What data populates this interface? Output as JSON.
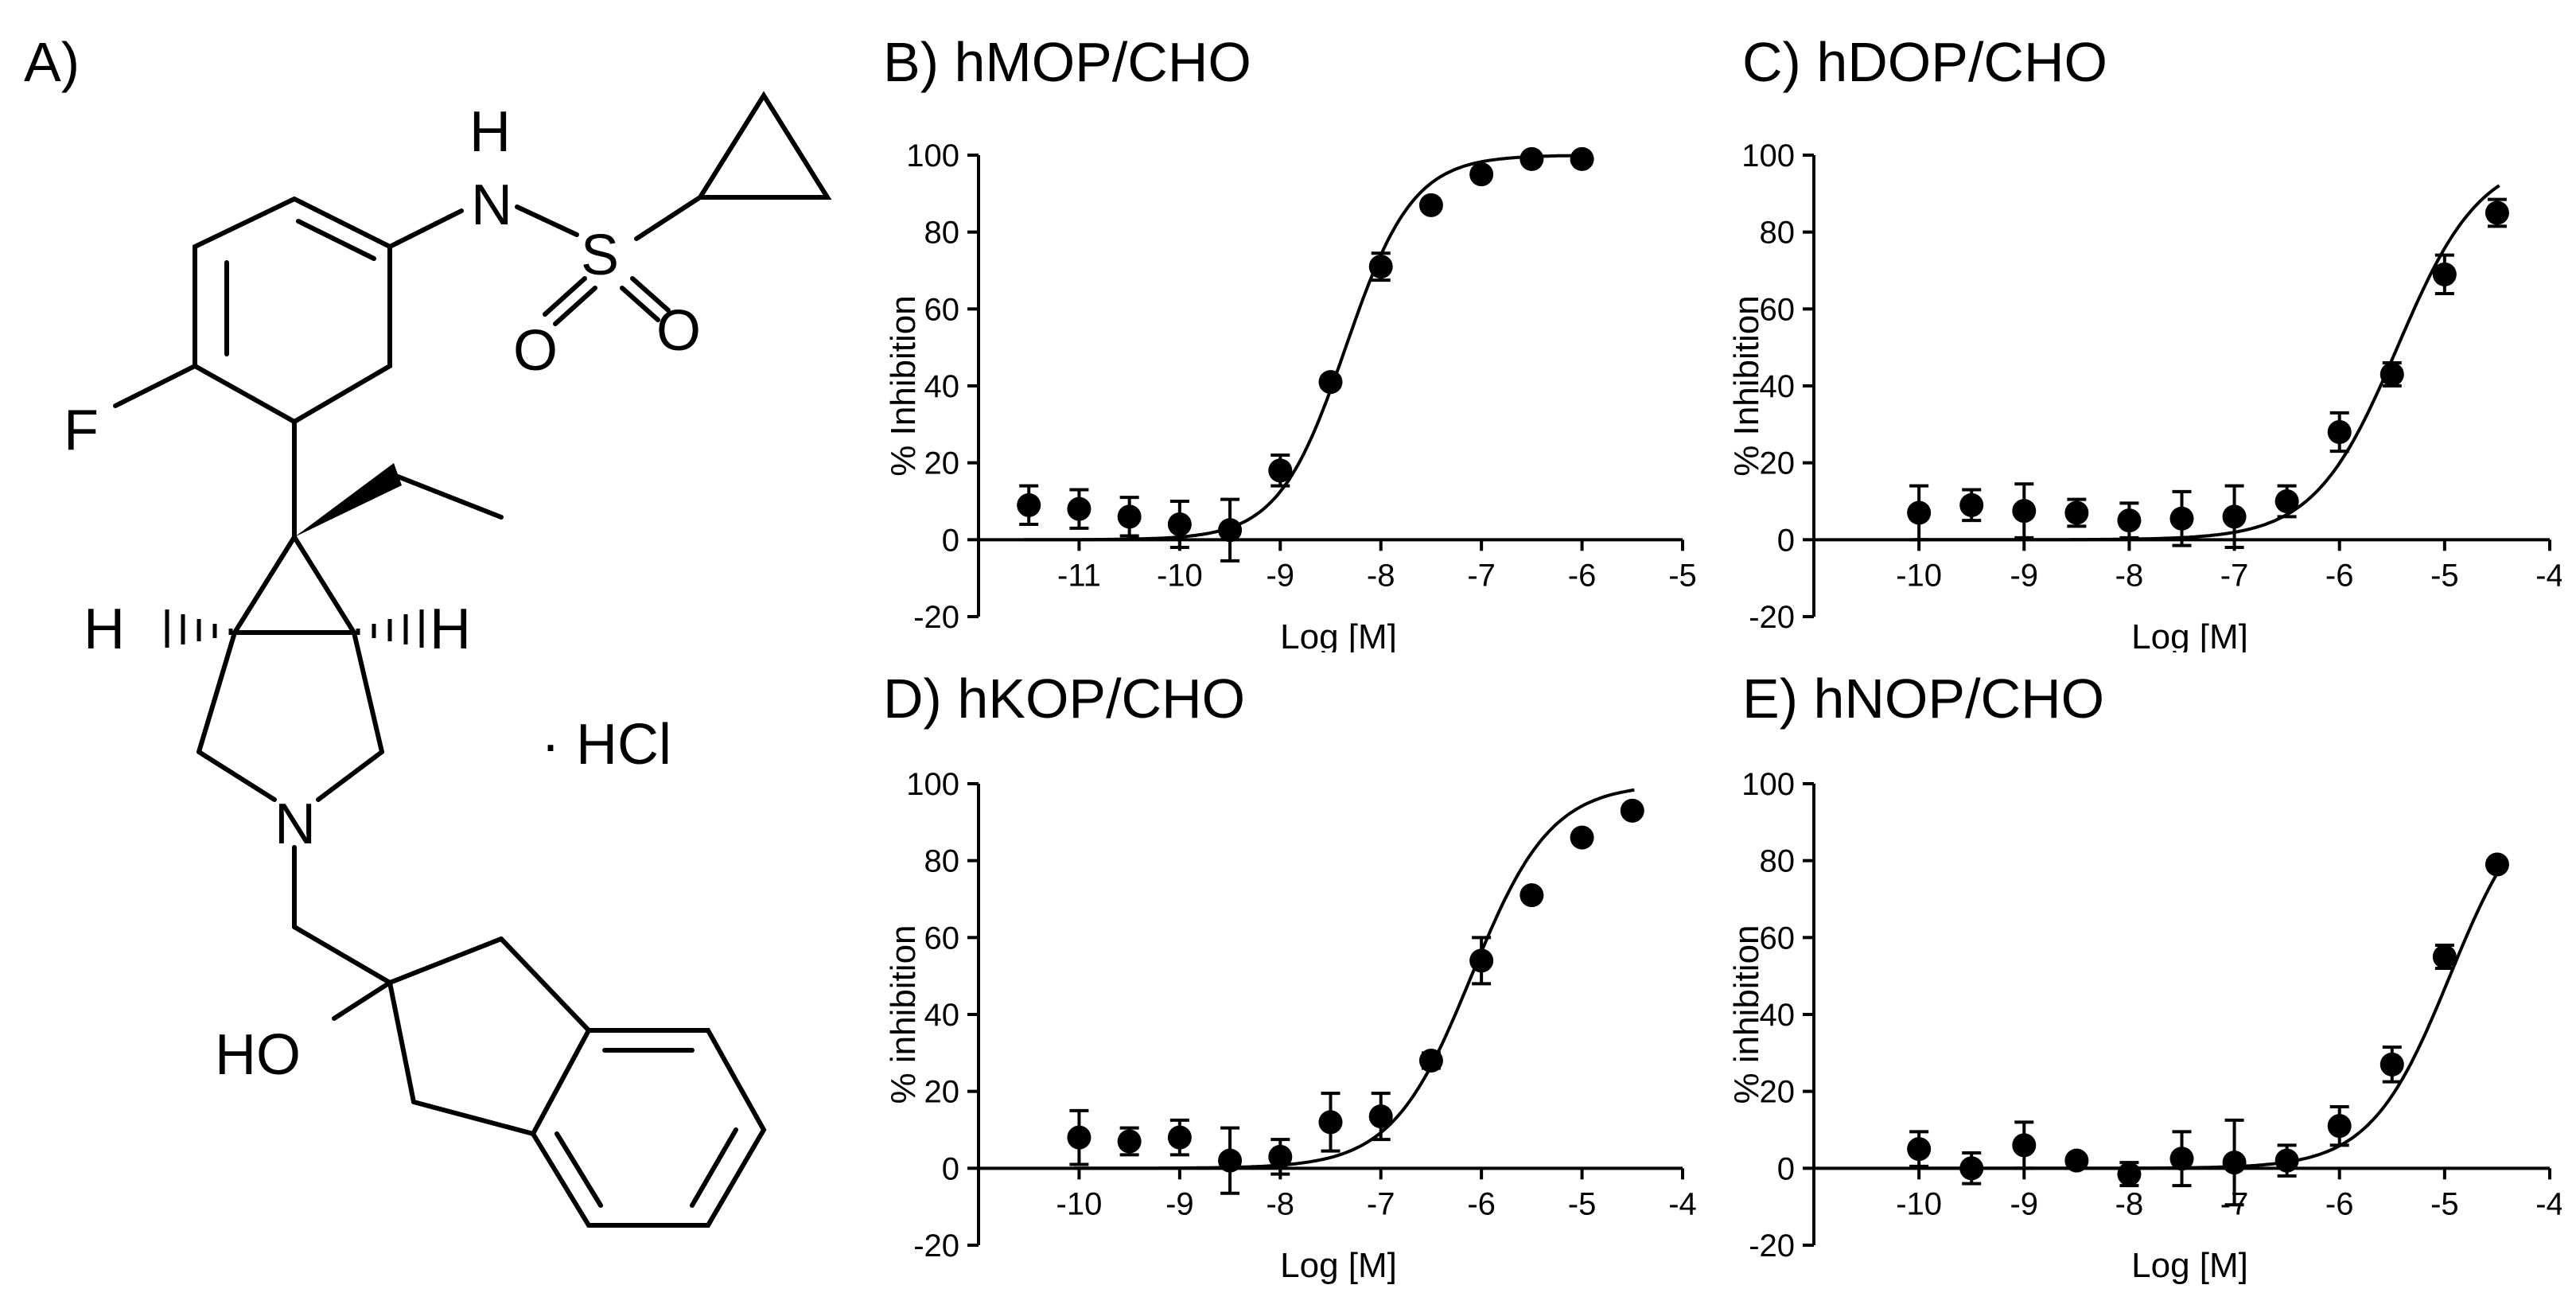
{
  "panel_a": {
    "label": "A)",
    "atoms": [
      "H",
      "N",
      "S",
      "O",
      "O",
      "F",
      "H",
      "H",
      "N",
      "HO"
    ],
    "salt": "· HCl"
  },
  "chart_data": [
    {
      "panel": "B)",
      "title": "hMOP/CHO",
      "type": "scatter",
      "xlabel": "Log [M]",
      "ylabel": "% Inhibition",
      "xlim": [
        -12,
        -5
      ],
      "ylim": [
        -20,
        100
      ],
      "xticks": [
        -11,
        -10,
        -9,
        -8,
        -7,
        -6,
        -5
      ],
      "yticks": [
        -20,
        0,
        20,
        40,
        60,
        80,
        100
      ],
      "fit": {
        "logEC50": -8.35,
        "hill": 1.3,
        "top": 100,
        "bottom": 0
      },
      "series": [
        {
          "x": [
            -11.5,
            -11,
            -10.5,
            -10,
            -9.5,
            -9,
            -8.5,
            -8,
            -7.5,
            -7,
            -6.5,
            -6
          ],
          "y": [
            9,
            8,
            6,
            4,
            2.5,
            18,
            41,
            71,
            87,
            95,
            99,
            99
          ],
          "err": [
            5,
            5,
            5,
            6,
            8,
            4,
            1.5,
            3.5,
            1.5,
            1,
            1,
            1
          ]
        }
      ]
    },
    {
      "panel": "C)",
      "title": "hDOP/CHO",
      "type": "scatter",
      "xlabel": "Log [M]",
      "ylabel": "% Inhibition",
      "xlim": [
        -11,
        -4
      ],
      "ylim": [
        -20,
        100
      ],
      "xticks": [
        -10,
        -9,
        -8,
        -7,
        -6,
        -5,
        -4
      ],
      "yticks": [
        -20,
        0,
        20,
        40,
        60,
        80,
        100
      ],
      "fit": {
        "logEC50": -5.45,
        "hill": 1.1,
        "top": 100,
        "bottom": 0
      },
      "series": [
        {
          "x": [
            -10,
            -9.5,
            -9,
            -8.5,
            -8,
            -7.5,
            -7,
            -6.5,
            -6,
            -5.5,
            -5,
            -4.5
          ],
          "y": [
            7,
            9,
            7.5,
            7,
            5,
            5.5,
            6,
            10,
            28,
            43,
            69,
            85
          ],
          "err": [
            7,
            4,
            7,
            3.5,
            4.5,
            7,
            8,
            4,
            5,
            3,
            5,
            3.5
          ]
        }
      ]
    },
    {
      "panel": "D)",
      "title": "hKOP/CHO",
      "type": "scatter",
      "xlabel": "Log [M]",
      "ylabel": "% inhibition",
      "xlim": [
        -11,
        -4
      ],
      "ylim": [
        -20,
        100
      ],
      "xticks": [
        -10,
        -9,
        -8,
        -7,
        -6,
        -5,
        -4
      ],
      "yticks": [
        -20,
        0,
        20,
        40,
        60,
        80,
        100
      ],
      "fit": {
        "logEC50": -6.1,
        "hill": 1.1,
        "top": 100,
        "bottom": 0
      },
      "series": [
        {
          "x": [
            -10,
            -9.5,
            -9,
            -8.5,
            -8,
            -7.5,
            -7,
            -6.5,
            -6,
            -5.5,
            -5,
            -4.5
          ],
          "y": [
            8,
            7,
            8,
            2,
            3,
            12,
            13.5,
            28,
            54,
            71,
            86,
            93
          ],
          "err": [
            7,
            3.5,
            4.5,
            8.5,
            4.5,
            7.5,
            6,
            2,
            6,
            1,
            1,
            1
          ]
        }
      ]
    },
    {
      "panel": "E)",
      "title": "hNOP/CHO",
      "type": "scatter",
      "xlabel": "Log [M]",
      "ylabel": "% inhibition",
      "xlim": [
        -11,
        -4
      ],
      "ylim": [
        -20,
        100
      ],
      "xticks": [
        -10,
        -9,
        -8,
        -7,
        -6,
        -5,
        -4
      ],
      "yticks": [
        -20,
        0,
        20,
        40,
        60,
        80,
        100
      ],
      "fit": {
        "logEC50": -4.95,
        "hill": 1.15,
        "top": 100,
        "bottom": 0
      },
      "series": [
        {
          "x": [
            -10,
            -9.5,
            -9,
            -8.5,
            -8,
            -7.5,
            -7,
            -6.5,
            -6,
            -5.5,
            -5,
            -4.5
          ],
          "y": [
            5,
            0,
            6,
            2,
            -1.5,
            2.5,
            1.5,
            2,
            11,
            27,
            55,
            79
          ],
          "err": [
            4.5,
            4,
            6,
            1,
            3,
            7,
            11,
            4,
            5,
            4.5,
            3,
            1
          ]
        }
      ]
    }
  ]
}
